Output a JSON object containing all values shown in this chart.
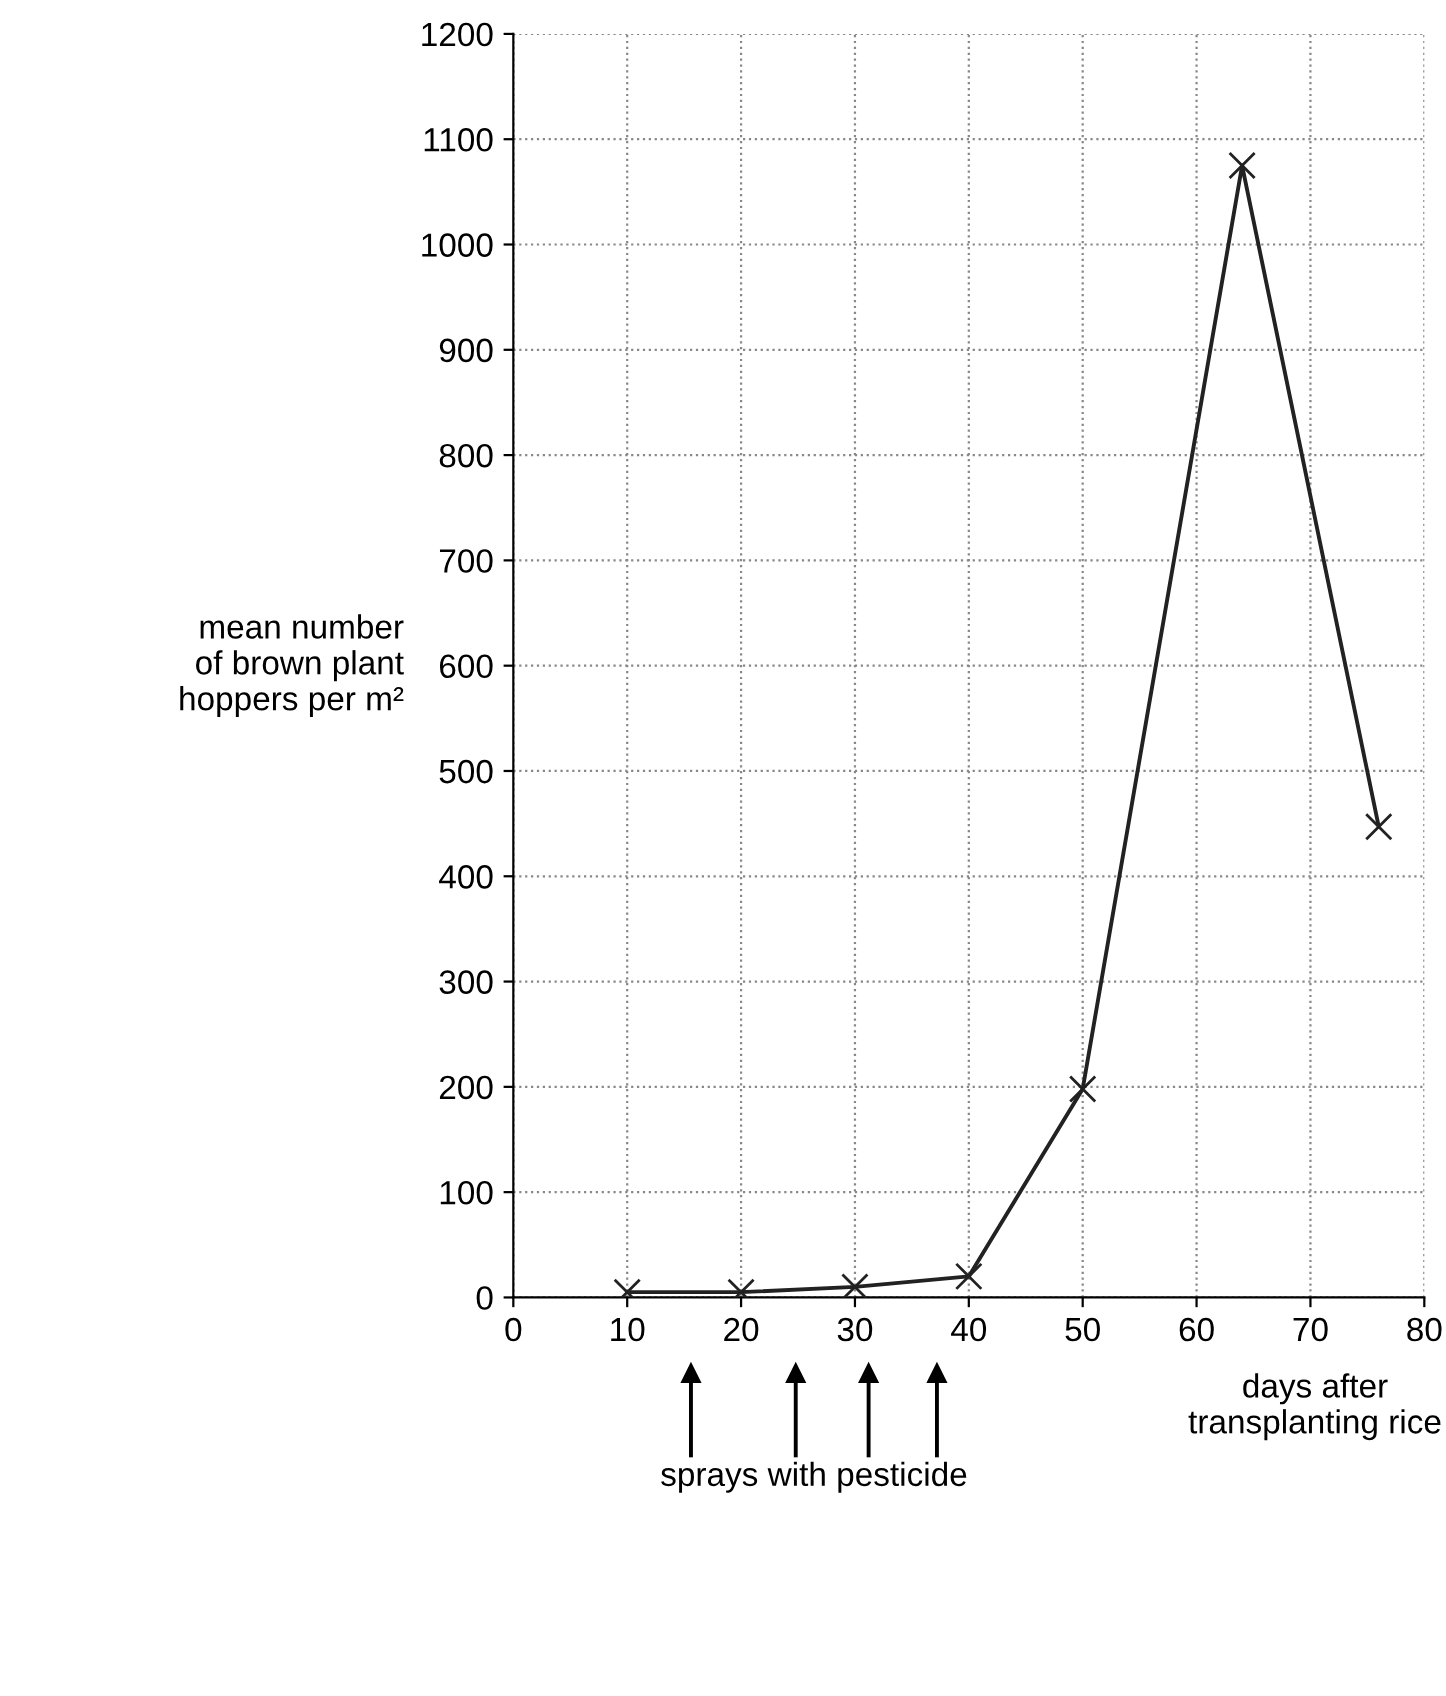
{
  "chart_data": {
    "type": "line",
    "xlabel": "days after\ntransplanting rice",
    "ylabel": "mean number\nof brown plant\nhoppers per m²",
    "x": [
      10,
      20,
      30,
      40,
      50,
      64,
      76
    ],
    "series": [
      {
        "color": "#222222",
        "values": [
          5,
          5,
          10,
          20,
          198,
          1075,
          447
        ]
      }
    ],
    "marker": "cross",
    "line_style": "solid",
    "xlim": [
      0,
      80
    ],
    "xticks": [
      0,
      10,
      20,
      30,
      40,
      50,
      60,
      70,
      80
    ],
    "ylim": [
      0,
      1200
    ],
    "yticks": [
      0,
      100,
      200,
      300,
      400,
      500,
      600,
      700,
      800,
      900,
      1000,
      1100,
      1200
    ],
    "grid": true,
    "annotations": [
      "sprays with pesticide"
    ]
  }
}
